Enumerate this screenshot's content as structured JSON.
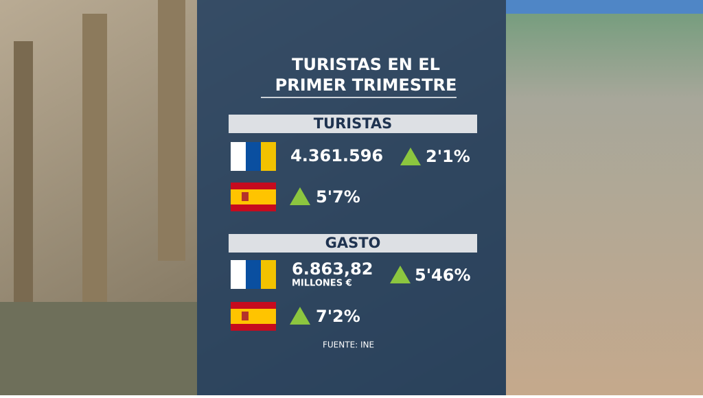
{
  "title": {
    "lines": [
      "TURISTAS EN EL",
      "PRIMER TRIMESTRE"
    ]
  },
  "sections": [
    {
      "heading": "TURISTAS",
      "rows": [
        {
          "value": "4.361.596",
          "change": "2'1%"
        },
        {
          "change": "5'7%"
        }
      ]
    },
    {
      "heading": "GASTO",
      "rows": [
        {
          "value": "6.863,82",
          "unit": "MILLONES €",
          "change": "5'46%"
        },
        {
          "change": "7'2%"
        }
      ]
    }
  ],
  "source": "FUENTE: INE"
}
